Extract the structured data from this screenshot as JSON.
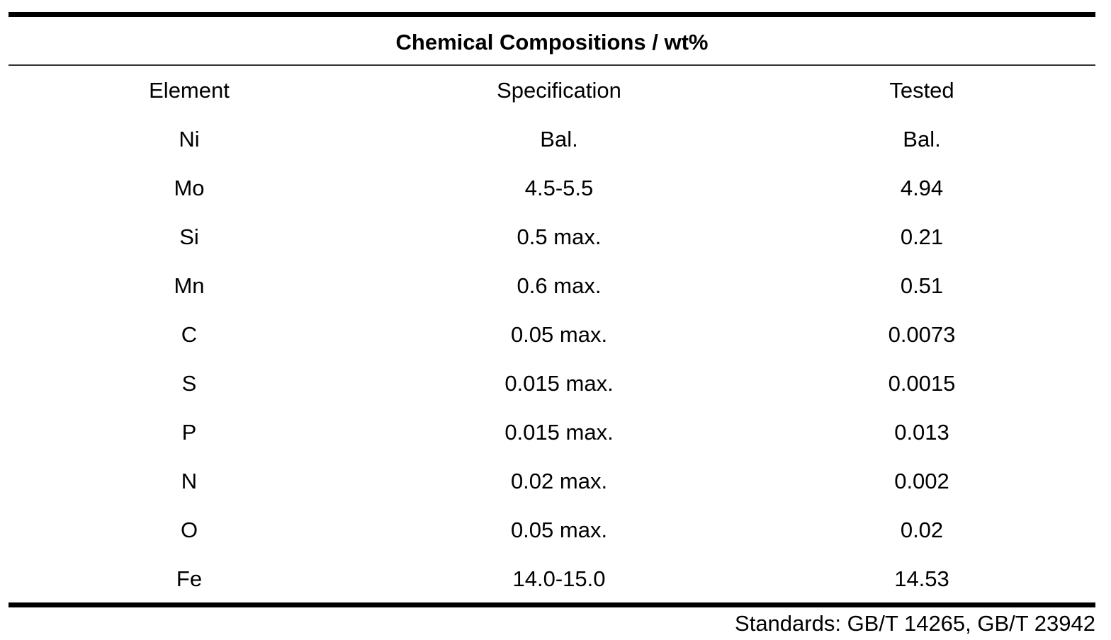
{
  "table": {
    "title": "Chemical Compositions / wt%",
    "headers": [
      "Element",
      "Specification",
      "Tested"
    ],
    "rows": [
      [
        "Ni",
        "Bal.",
        "Bal."
      ],
      [
        "Mo",
        "4.5-5.5",
        "4.94"
      ],
      [
        "Si",
        "0.5 max.",
        "0.21"
      ],
      [
        "Mn",
        "0.6 max.",
        "0.51"
      ],
      [
        "C",
        "0.05 max.",
        "0.0073"
      ],
      [
        "S",
        "0.015 max.",
        "0.0015"
      ],
      [
        "P",
        "0.015 max.",
        "0.013"
      ],
      [
        "N",
        "0.02 max.",
        "0.002"
      ],
      [
        "O",
        "0.05 max.",
        "0.02"
      ],
      [
        "Fe",
        "14.0-15.0",
        "14.53"
      ]
    ],
    "footnote": "Standards: GB/T 14265, GB/T 23942"
  }
}
